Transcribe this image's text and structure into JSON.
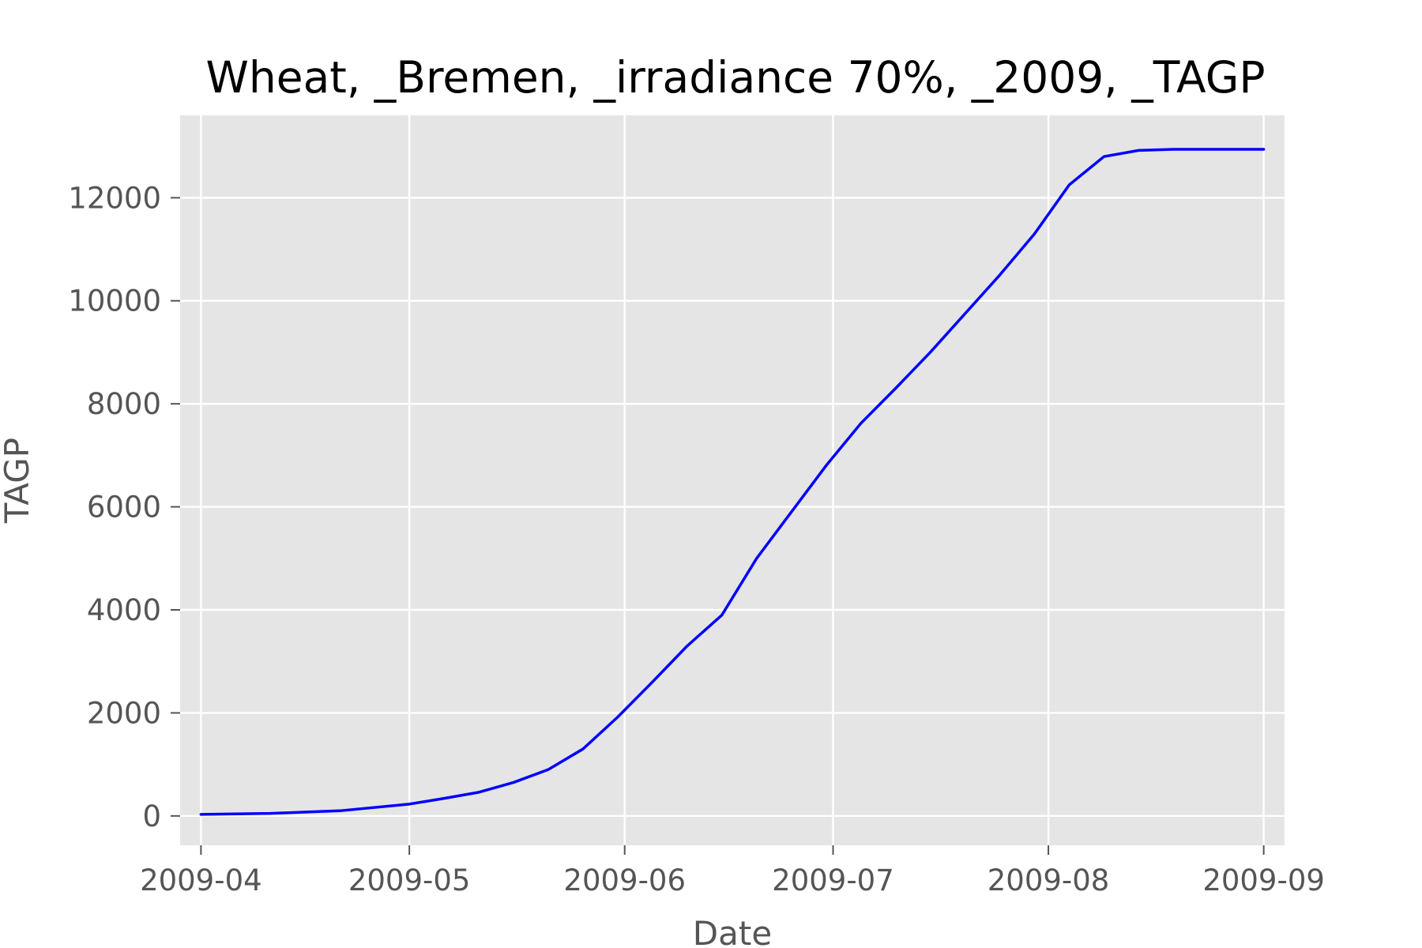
{
  "chart_data": {
    "type": "line",
    "title": "Wheat, _Bremen, _irradiance 70%, _2009, _TAGP",
    "xlabel": "Date",
    "ylabel": "TAGP",
    "x_ticks": [
      "2009-04",
      "2009-05",
      "2009-06",
      "2009-07",
      "2009-08",
      "2009-09"
    ],
    "y_ticks": [
      0,
      2000,
      4000,
      6000,
      8000,
      10000,
      12000
    ],
    "xlim": [
      "2009-03-29",
      "2009-09-04"
    ],
    "ylim": [
      -570,
      13600
    ],
    "grid": true,
    "colors": {
      "background": "#e5e5e5",
      "grid": "#ffffff",
      "line": "#0000ff",
      "tick": "#555555"
    },
    "series": [
      {
        "x": [
          "2009-04-01",
          "2009-04-11",
          "2009-04-21",
          "2009-05-01",
          "2009-05-06",
          "2009-05-11",
          "2009-05-16",
          "2009-05-21",
          "2009-05-26",
          "2009-05-31",
          "2009-06-05",
          "2009-06-10",
          "2009-06-15",
          "2009-06-20",
          "2009-06-25",
          "2009-06-30",
          "2009-07-05",
          "2009-07-10",
          "2009-07-15",
          "2009-07-20",
          "2009-07-25",
          "2009-07-30",
          "2009-08-04",
          "2009-08-09",
          "2009-08-14",
          "2009-08-19",
          "2009-08-24",
          "2009-08-29",
          "2009-09-01"
        ],
        "y": [
          30,
          50,
          100,
          230,
          340,
          460,
          650,
          900,
          1300,
          1920,
          2600,
          3300,
          3900,
          5000,
          5900,
          6800,
          7620,
          8300,
          9000,
          9750,
          10500,
          11300,
          12250,
          12800,
          12920,
          12940,
          12940,
          12940,
          12940
        ]
      }
    ]
  }
}
